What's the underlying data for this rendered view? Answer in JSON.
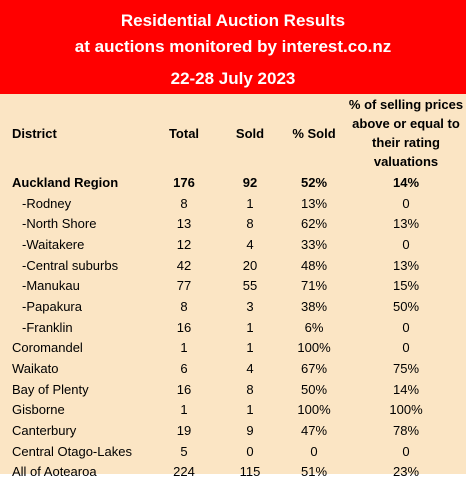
{
  "header": {
    "line1": "Residential Auction Results",
    "line2": "at auctions monitored by interest.co.nz",
    "line3": "22-28 July 2023"
  },
  "columns": {
    "district": "District",
    "total": "Total",
    "sold": "Sold",
    "pct_sold": "% Sold",
    "pct_above": "% of selling prices above or equal to their rating valuations"
  },
  "colors": {
    "header_bg": "#ff0000",
    "header_text": "#ffffff",
    "table_bg": "#fbe5c4"
  },
  "rows": [
    {
      "district": "Auckland Region",
      "total": "176",
      "sold": "92",
      "pct_sold": "52%",
      "pct_above": "14%"
    },
    {
      "district": "-Rodney",
      "total": "8",
      "sold": "1",
      "pct_sold": "13%",
      "pct_above": "0"
    },
    {
      "district": "-North Shore",
      "total": "13",
      "sold": "8",
      "pct_sold": "62%",
      "pct_above": "13%"
    },
    {
      "district": "-Waitakere",
      "total": "12",
      "sold": "4",
      "pct_sold": "33%",
      "pct_above": "0"
    },
    {
      "district": "-Central suburbs",
      "total": "42",
      "sold": "20",
      "pct_sold": "48%",
      "pct_above": "13%"
    },
    {
      "district": "-Manukau",
      "total": "77",
      "sold": "55",
      "pct_sold": "71%",
      "pct_above": "15%"
    },
    {
      "district": "-Papakura",
      "total": "8",
      "sold": "3",
      "pct_sold": "38%",
      "pct_above": "50%"
    },
    {
      "district": "-Franklin",
      "total": "16",
      "sold": "1",
      "pct_sold": "6%",
      "pct_above": "0"
    },
    {
      "district": "Coromandel",
      "total": "1",
      "sold": "1",
      "pct_sold": "100%",
      "pct_above": "0"
    },
    {
      "district": "Waikato",
      "total": "6",
      "sold": "4",
      "pct_sold": "67%",
      "pct_above": "75%"
    },
    {
      "district": "Bay of Plenty",
      "total": "16",
      "sold": "8",
      "pct_sold": "50%",
      "pct_above": "14%"
    },
    {
      "district": "Gisborne",
      "total": "1",
      "sold": "1",
      "pct_sold": "100%",
      "pct_above": "100%"
    },
    {
      "district": "Canterbury",
      "total": "19",
      "sold": "9",
      "pct_sold": "47%",
      "pct_above": "78%"
    },
    {
      "district": "Central Otago-Lakes",
      "total": "5",
      "sold": "0",
      "pct_sold": "0",
      "pct_above": "0"
    },
    {
      "district": "All of Aotearoa",
      "total": "224",
      "sold": "115",
      "pct_sold": "51%",
      "pct_above": "23%"
    }
  ]
}
